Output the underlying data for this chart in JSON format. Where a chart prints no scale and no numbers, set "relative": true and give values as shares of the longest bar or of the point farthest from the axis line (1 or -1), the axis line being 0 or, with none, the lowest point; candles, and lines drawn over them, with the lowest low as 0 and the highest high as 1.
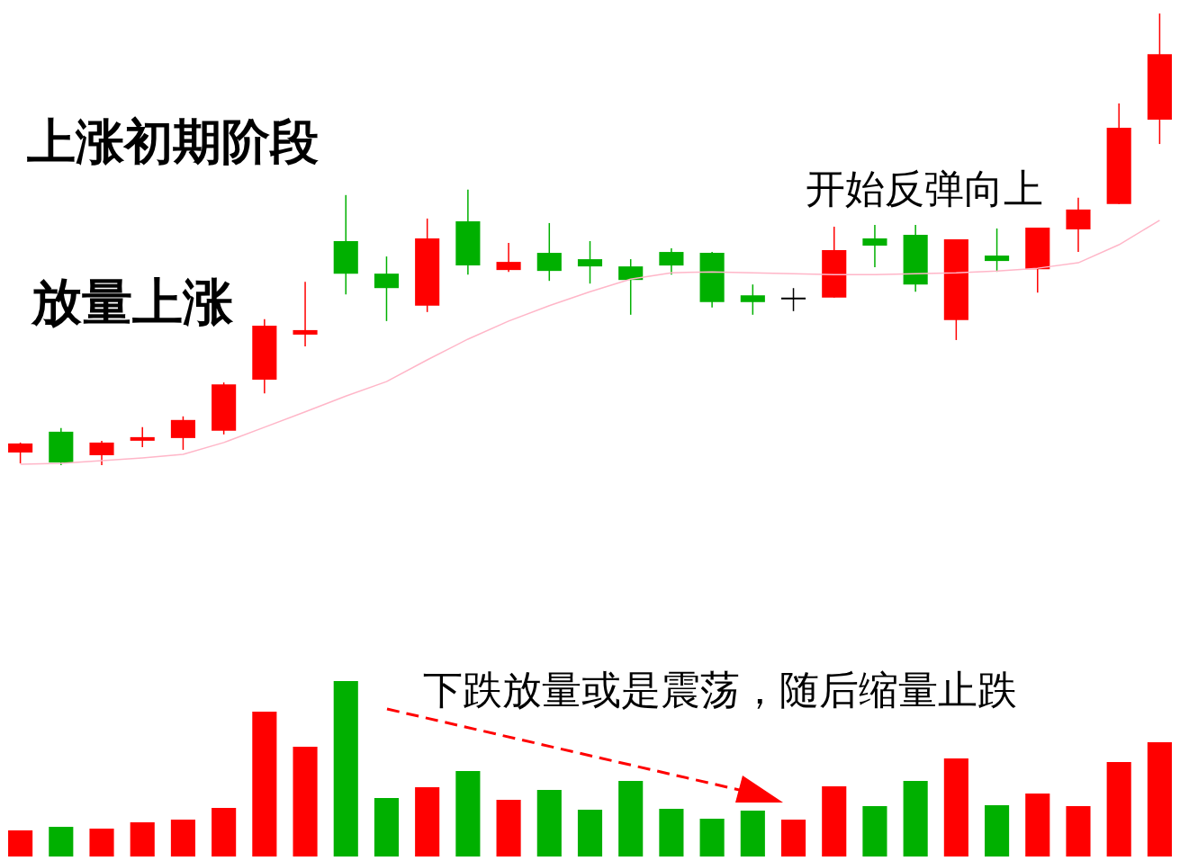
{
  "chart_data": [
    {
      "type": "candlestick",
      "title": "上涨初期阶段",
      "annotations": [
        "放量上涨",
        "开始反弹向上"
      ],
      "relative": true,
      "categories": [
        null,
        null,
        null,
        null,
        null,
        null,
        null,
        null,
        null,
        null,
        null,
        null,
        null,
        null,
        null,
        null,
        null,
        null,
        null,
        null,
        null,
        null,
        null,
        null,
        null,
        null,
        null,
        null,
        null
      ],
      "ohlc": [
        [
          0.028,
          0.05,
          0.004,
          0.048
        ],
        [
          0.074,
          0.082,
          0,
          0.006
        ],
        [
          0.022,
          0.054,
          0,
          0.05
        ],
        [
          0.054,
          0.084,
          0.04,
          0.062
        ],
        [
          0.06,
          0.108,
          0.034,
          0.1
        ],
        [
          0.076,
          0.183,
          0.068,
          0.179
        ],
        [
          0.189,
          0.323,
          0.159,
          0.309
        ],
        [
          0.289,
          0.406,
          0.263,
          0.299
        ],
        [
          0.496,
          0.598,
          0.378,
          0.424
        ],
        [
          0.424,
          0.462,
          0.319,
          0.392
        ],
        [
          0.353,
          0.546,
          0.339,
          0.502
        ],
        [
          0.54,
          0.61,
          0.422,
          0.442
        ],
        [
          0.432,
          0.492,
          0.428,
          0.45
        ],
        [
          0.47,
          0.536,
          0.408,
          0.43
        ],
        [
          0.456,
          0.496,
          0.402,
          0.44
        ],
        [
          0.44,
          0.456,
          0.333,
          0.41
        ],
        [
          0.472,
          0.48,
          0.422,
          0.442
        ],
        [
          0.47,
          0.472,
          0.349,
          0.361
        ],
        [
          0.376,
          0.4,
          0.333,
          0.361
        ],
        [
          0.367,
          0.392,
          0.341,
          0.367
        ],
        [
          0.371,
          0.528,
          0.371,
          0.476
        ],
        [
          0.502,
          0.532,
          0.438,
          0.486
        ],
        [
          0.51,
          0.532,
          0.384,
          0.4
        ],
        [
          0.321,
          0.5,
          0.277,
          0.5
        ],
        [
          0.464,
          0.524,
          0.428,
          0.452
        ],
        [
          0.434,
          0.526,
          0.382,
          0.526
        ],
        [
          0.522,
          0.592,
          0.472,
          0.566
        ],
        [
          0.578,
          0.801,
          0.578,
          0.747
        ],
        [
          0.765,
          1,
          0.711,
          0.91
        ]
      ],
      "colors": [
        "#ff0000",
        "#00b000",
        "#ff0000",
        "#ff0000",
        "#ff0000",
        "#ff0000",
        "#ff0000",
        "#ff0000",
        "#00b000",
        "#00b000",
        "#ff0000",
        "#00b000",
        "#ff0000",
        "#00b000",
        "#00b000",
        "#00b000",
        "#00b000",
        "#00b000",
        "#00b000",
        "#000000",
        "#ff0000",
        "#00b000",
        "#00b000",
        "#ff0000",
        "#00b000",
        "#ff0000",
        "#ff0000",
        "#ff0000",
        "#ff0000"
      ],
      "series": [
        {
          "type": "line",
          "color": "#ffb6c8",
          "values": [
            0.002,
            0.004,
            0.01,
            0.016,
            0.024,
            0.05,
            0.084,
            0.118,
            0.153,
            0.185,
            0.233,
            0.279,
            0.319,
            0.353,
            0.384,
            0.412,
            0.426,
            0.428,
            0.426,
            0.424,
            0.422,
            0.422,
            0.424,
            0.426,
            0.43,
            0.436,
            0.448,
            0.488,
            0.542
          ]
        }
      ]
    },
    {
      "type": "bar",
      "annotations": [
        "下跌放量或是震荡，随后缩量止跌"
      ],
      "relative": true,
      "categories": [
        null,
        null,
        null,
        null,
        null,
        null,
        null,
        null,
        null,
        null,
        null,
        null,
        null,
        null,
        null,
        null,
        null,
        null,
        null,
        null,
        null,
        null,
        null,
        null,
        null,
        null,
        null,
        null,
        null
      ],
      "values": [
        0.149,
        0.169,
        0.159,
        0.195,
        0.21,
        0.277,
        0.826,
        0.626,
        1,
        0.333,
        0.395,
        0.487,
        0.323,
        0.379,
        0.267,
        0.431,
        0.272,
        0.215,
        0.262,
        0.21,
        0.4,
        0.287,
        0.431,
        0.559,
        0.292,
        0.359,
        0.287,
        0.538,
        0.651
      ],
      "colors": [
        "#ff0000",
        "#00b000",
        "#ff0000",
        "#ff0000",
        "#ff0000",
        "#ff0000",
        "#ff0000",
        "#ff0000",
        "#00b000",
        "#00b000",
        "#ff0000",
        "#00b000",
        "#ff0000",
        "#00b000",
        "#00b000",
        "#00b000",
        "#00b000",
        "#00b000",
        "#00b000",
        "#ff0000",
        "#ff0000",
        "#00b000",
        "#00b000",
        "#ff0000",
        "#00b000",
        "#ff0000",
        "#ff0000",
        "#ff0000",
        "#ff0000"
      ]
    }
  ]
}
